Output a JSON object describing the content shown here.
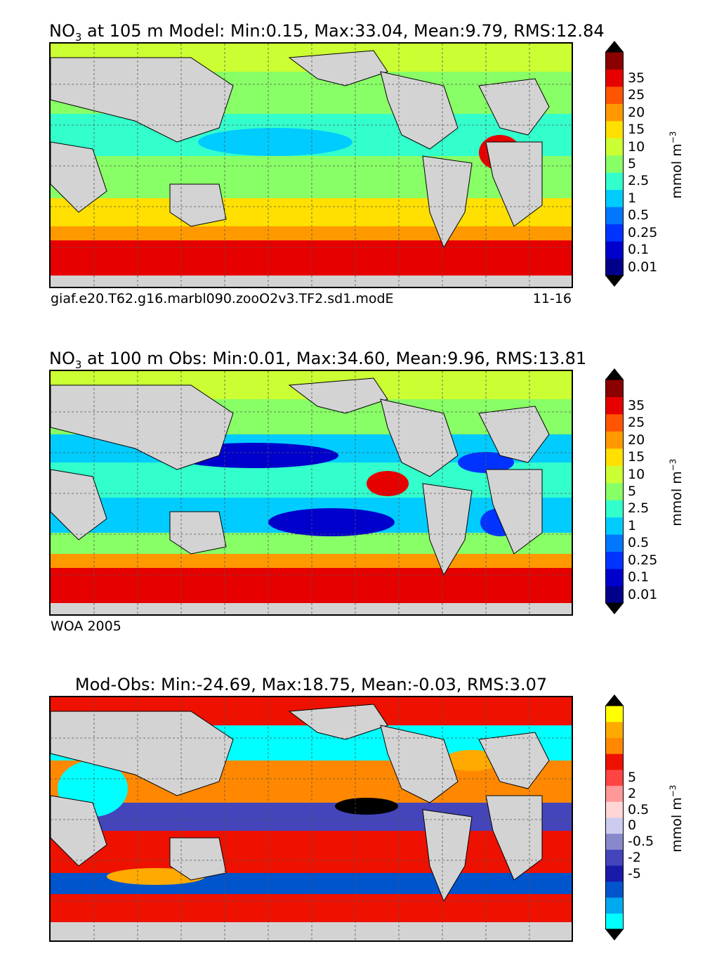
{
  "panels": [
    {
      "id": "model",
      "title_prefix": "NO",
      "title_sub": "3",
      "title_rest": " at 105 m Model: Min:0.15, Max:33.04, Mean:9.79, RMS:12.84",
      "footer_left": "giaf.e20.T62.g16.marbl090.zooO2v3.TF2.sd1.modE",
      "footer_right": "11-16",
      "colorbar": {
        "units": "mmol m",
        "units_exp": "−3",
        "labels": [
          "35",
          "25",
          "20",
          "15",
          "10",
          "5",
          "2.5",
          "1",
          "0.5",
          "0.25",
          "0.1",
          "0.01"
        ],
        "colors": [
          "#00008b",
          "#0000cd",
          "#0033ff",
          "#0077ff",
          "#00ccff",
          "#33ffcc",
          "#88ff66",
          "#ccff33",
          "#ffe000",
          "#ff9900",
          "#ff5500",
          "#e60000",
          "#8b0000"
        ],
        "extend_low": "#000000",
        "extend_high": "#000000"
      }
    },
    {
      "id": "obs",
      "title_prefix": "NO",
      "title_sub": "3",
      "title_rest": " at 100 m Obs: Min:0.01, Max:34.60, Mean:9.96, RMS:13.81",
      "footer_left": "WOA 2005",
      "footer_right": "",
      "colorbar": {
        "units": "mmol m",
        "units_exp": "−3",
        "labels": [
          "35",
          "25",
          "20",
          "15",
          "10",
          "5",
          "2.5",
          "1",
          "0.5",
          "0.25",
          "0.1",
          "0.01"
        ],
        "colors": [
          "#00008b",
          "#0000cd",
          "#0033ff",
          "#0077ff",
          "#00ccff",
          "#33ffcc",
          "#88ff66",
          "#ccff33",
          "#ffe000",
          "#ff9900",
          "#ff5500",
          "#e60000",
          "#8b0000"
        ],
        "extend_low": "#000000",
        "extend_high": "#000000"
      }
    },
    {
      "id": "diff",
      "title_prefix": "",
      "title_sub": "",
      "title_rest": "Mod-Obs: Min:-24.69, Max:18.75, Mean:-0.03, RMS:3.07",
      "footer_left": "",
      "footer_right": "",
      "colorbar": {
        "units": "mmol m",
        "units_exp": "−3",
        "labels": [
          "5",
          "2",
          "0.5",
          "0",
          "-0.5",
          "-2",
          "-5"
        ],
        "colors": [
          "#00ffff",
          "#00aaee",
          "#0055cc",
          "#1a1aaa",
          "#4444bb",
          "#8888cc",
          "#ccccee",
          "#ffd6d6",
          "#ff9999",
          "#ff4444",
          "#ee1100",
          "#ff8800",
          "#ffaa00",
          "#ffff00"
        ],
        "extend_low": "#000000",
        "extend_high": "#000000"
      }
    }
  ]
}
